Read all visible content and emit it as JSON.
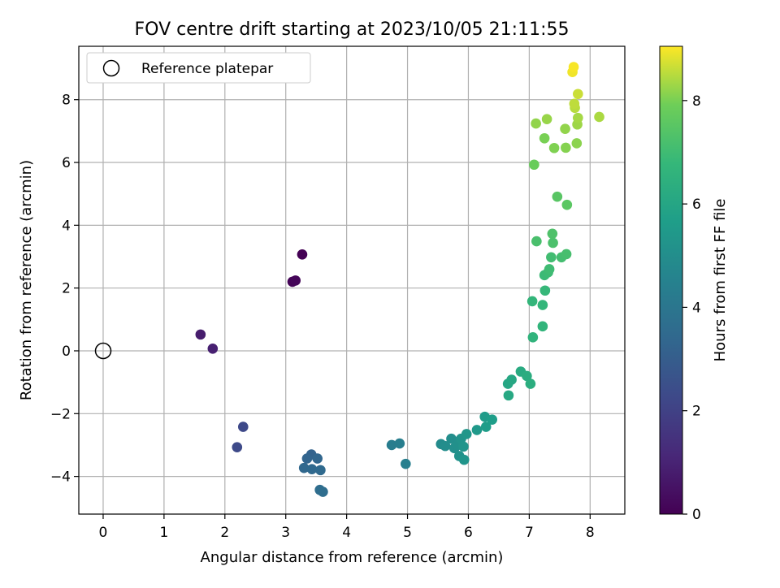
{
  "chart_data": {
    "type": "scatter",
    "title": "FOV centre drift starting at 2023/10/05 21:11:55",
    "xlabel": "Angular distance from reference (arcmin)",
    "ylabel": "Rotation from reference (arcmin)",
    "xlim": [
      -0.4,
      8.57
    ],
    "ylim": [
      -5.2,
      9.7
    ],
    "xticks": [
      0,
      1,
      2,
      3,
      4,
      5,
      6,
      7,
      8
    ],
    "yticks": [
      -4,
      -2,
      0,
      2,
      4,
      6,
      8
    ],
    "grid": true,
    "legend": {
      "position": "top-left",
      "entries": [
        "Reference platepar"
      ]
    },
    "reference_point": {
      "x": 0,
      "y": 0,
      "marker": "open-circle"
    },
    "colorbar": {
      "label": "Hours from first FF file",
      "colormap": "viridis",
      "range": [
        0,
        9.05
      ],
      "ticks": [
        0,
        2,
        4,
        6,
        8
      ]
    },
    "points": [
      {
        "x": 3.27,
        "y": 3.07,
        "h": 0.0
      },
      {
        "x": 3.11,
        "y": 2.2,
        "h": 0.1
      },
      {
        "x": 3.16,
        "y": 2.24,
        "h": 0.15
      },
      {
        "x": 1.6,
        "y": 0.52,
        "h": 0.8
      },
      {
        "x": 1.8,
        "y": 0.07,
        "h": 0.9
      },
      {
        "x": 2.3,
        "y": -2.42,
        "h": 2.25
      },
      {
        "x": 2.2,
        "y": -3.07,
        "h": 2.3
      },
      {
        "x": 3.42,
        "y": -3.3,
        "h": 3.2
      },
      {
        "x": 3.35,
        "y": -3.43,
        "h": 3.3
      },
      {
        "x": 3.52,
        "y": -3.43,
        "h": 3.35
      },
      {
        "x": 3.3,
        "y": -3.73,
        "h": 3.4
      },
      {
        "x": 3.43,
        "y": -3.77,
        "h": 3.45
      },
      {
        "x": 3.57,
        "y": -3.8,
        "h": 3.5
      },
      {
        "x": 3.56,
        "y": -4.43,
        "h": 3.6
      },
      {
        "x": 3.61,
        "y": -4.49,
        "h": 3.65
      },
      {
        "x": 4.74,
        "y": -3.0,
        "h": 4.3
      },
      {
        "x": 4.87,
        "y": -2.95,
        "h": 4.35
      },
      {
        "x": 4.97,
        "y": -3.6,
        "h": 4.4
      },
      {
        "x": 5.55,
        "y": -2.97,
        "h": 4.9
      },
      {
        "x": 5.62,
        "y": -3.03,
        "h": 4.95
      },
      {
        "x": 5.72,
        "y": -2.8,
        "h": 5.0
      },
      {
        "x": 5.77,
        "y": -3.1,
        "h": 5.05
      },
      {
        "x": 5.82,
        "y": -3.0,
        "h": 5.1
      },
      {
        "x": 5.85,
        "y": -3.35,
        "h": 5.15
      },
      {
        "x": 5.88,
        "y": -2.8,
        "h": 5.2
      },
      {
        "x": 5.92,
        "y": -3.05,
        "h": 5.25
      },
      {
        "x": 5.93,
        "y": -3.47,
        "h": 5.3
      },
      {
        "x": 5.97,
        "y": -2.65,
        "h": 5.35
      },
      {
        "x": 6.14,
        "y": -2.52,
        "h": 5.45
      },
      {
        "x": 6.27,
        "y": -2.1,
        "h": 5.55
      },
      {
        "x": 6.29,
        "y": -2.42,
        "h": 5.6
      },
      {
        "x": 6.39,
        "y": -2.19,
        "h": 5.65
      },
      {
        "x": 6.65,
        "y": -1.05,
        "h": 6.0
      },
      {
        "x": 6.71,
        "y": -0.92,
        "h": 6.05
      },
      {
        "x": 6.66,
        "y": -1.42,
        "h": 6.1
      },
      {
        "x": 6.86,
        "y": -0.66,
        "h": 6.2
      },
      {
        "x": 6.96,
        "y": -0.8,
        "h": 6.3
      },
      {
        "x": 7.02,
        "y": -1.05,
        "h": 6.35
      },
      {
        "x": 7.06,
        "y": 0.43,
        "h": 6.6
      },
      {
        "x": 7.22,
        "y": 0.78,
        "h": 6.65
      },
      {
        "x": 7.05,
        "y": 1.58,
        "h": 6.7
      },
      {
        "x": 7.22,
        "y": 1.46,
        "h": 6.75
      },
      {
        "x": 7.26,
        "y": 1.92,
        "h": 6.8
      },
      {
        "x": 7.25,
        "y": 2.41,
        "h": 6.9
      },
      {
        "x": 7.31,
        "y": 2.5,
        "h": 6.95
      },
      {
        "x": 7.33,
        "y": 2.6,
        "h": 7.0
      },
      {
        "x": 7.36,
        "y": 2.98,
        "h": 7.05
      },
      {
        "x": 7.53,
        "y": 2.98,
        "h": 7.1
      },
      {
        "x": 7.61,
        "y": 3.08,
        "h": 7.15
      },
      {
        "x": 7.12,
        "y": 3.49,
        "h": 7.2
      },
      {
        "x": 7.39,
        "y": 3.44,
        "h": 7.25
      },
      {
        "x": 7.38,
        "y": 3.73,
        "h": 7.3
      },
      {
        "x": 7.46,
        "y": 4.91,
        "h": 7.5
      },
      {
        "x": 7.62,
        "y": 4.65,
        "h": 7.55
      },
      {
        "x": 7.08,
        "y": 5.93,
        "h": 7.8
      },
      {
        "x": 7.25,
        "y": 6.77,
        "h": 8.0
      },
      {
        "x": 7.41,
        "y": 6.46,
        "h": 8.05
      },
      {
        "x": 7.6,
        "y": 6.47,
        "h": 8.1
      },
      {
        "x": 7.78,
        "y": 6.61,
        "h": 8.15
      },
      {
        "x": 7.59,
        "y": 7.07,
        "h": 8.2
      },
      {
        "x": 7.11,
        "y": 7.24,
        "h": 8.2
      },
      {
        "x": 7.29,
        "y": 7.38,
        "h": 8.25
      },
      {
        "x": 7.79,
        "y": 7.21,
        "h": 8.3
      },
      {
        "x": 7.8,
        "y": 7.42,
        "h": 8.35
      },
      {
        "x": 8.15,
        "y": 7.45,
        "h": 8.4
      },
      {
        "x": 7.75,
        "y": 7.74,
        "h": 8.5
      },
      {
        "x": 7.74,
        "y": 7.87,
        "h": 8.55
      },
      {
        "x": 7.8,
        "y": 8.18,
        "h": 8.65
      },
      {
        "x": 7.71,
        "y": 8.88,
        "h": 8.95
      },
      {
        "x": 7.73,
        "y": 9.04,
        "h": 9.0
      }
    ]
  }
}
